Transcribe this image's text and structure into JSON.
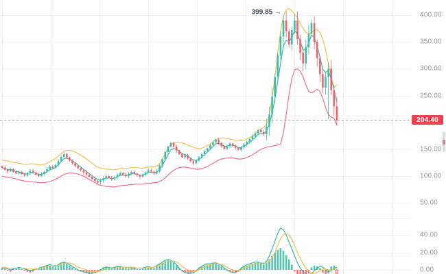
{
  "colors": {
    "up": "#3dbda9",
    "down": "#f0616b",
    "yellow": "#f2c14e",
    "pink": "#ef7089",
    "teal": "#35b9a2",
    "hist_up": "#52c6ae",
    "hist_down": "#f0787f",
    "dashed": "#f2939e",
    "badge_bg": "#ef404f",
    "grid": "#f1f2f4",
    "axis_text": "#95989d",
    "annotation_text": "#3f4555"
  },
  "annotation": {
    "label": "399.85 →",
    "price": 399.85,
    "candle_index": 100
  },
  "last_price": {
    "label": "204.40",
    "price": 204.4
  },
  "axes": {
    "price_ticks": [
      {
        "label": "400.00",
        "price": 400
      },
      {
        "label": "350.00",
        "price": 350
      },
      {
        "label": "300.00",
        "price": 300
      },
      {
        "label": "250.00",
        "price": 250
      },
      {
        "label": "150.00",
        "price": 150
      },
      {
        "label": "100.00",
        "price": 100
      },
      {
        "label": "50.00",
        "price": 50
      }
    ],
    "osc_ticks": [
      {
        "label": "40.00",
        "value": 40
      },
      {
        "label": "20.00",
        "value": 20
      },
      {
        "label": "0.00",
        "value": 0
      }
    ]
  },
  "chart_data": [
    {
      "type": "candlestick",
      "panel": "price",
      "title": "",
      "ylim": [
        35,
        428
      ],
      "yticks": [
        400,
        350,
        300,
        250,
        150,
        100,
        50
      ],
      "grid": true,
      "last_price": 204.4,
      "annotated_high": 399.85,
      "close": [
        116,
        112,
        109,
        113,
        108,
        105,
        108,
        104,
        101,
        105,
        110,
        107,
        103,
        100,
        104,
        108,
        113,
        118,
        115,
        121,
        128,
        136,
        141,
        135,
        129,
        124,
        119,
        115,
        111,
        107,
        103,
        99,
        95,
        91,
        88,
        92,
        96,
        100,
        97,
        94,
        98,
        102,
        106,
        103,
        100,
        104,
        108,
        105,
        102,
        99,
        103,
        107,
        111,
        108,
        105,
        109,
        120,
        132,
        145,
        155,
        162,
        155,
        148,
        141,
        135,
        139,
        133,
        128,
        124,
        129,
        135,
        141,
        147,
        152,
        158,
        163,
        168,
        162,
        156,
        151,
        156,
        161,
        157,
        153,
        149,
        154,
        159,
        164,
        169,
        174,
        180,
        186,
        182,
        178,
        192,
        215,
        248,
        285,
        325,
        360,
        390,
        370,
        345,
        372,
        390,
        355,
        330,
        310,
        340,
        365,
        385,
        350,
        320,
        290,
        265,
        285,
        300,
        260,
        230,
        204.4
      ],
      "high_overrides": {
        "100": 399.85
      },
      "low_overrides": {
        "116": 206,
        "119": 196
      },
      "series": [
        {
          "name": "upper-band",
          "color_key": "yellow",
          "values": [
            130,
            129,
            128,
            127,
            126,
            125,
            124,
            123,
            122,
            122,
            123,
            123,
            122,
            121,
            121,
            122,
            124,
            127,
            130,
            133,
            137,
            142,
            146,
            148,
            148,
            147,
            145,
            142,
            139,
            136,
            132,
            128,
            124,
            120,
            117,
            115,
            114,
            113,
            113,
            112,
            112,
            113,
            114,
            114,
            115,
            115,
            116,
            116,
            116,
            115,
            115,
            116,
            117,
            117,
            117,
            118,
            124,
            132,
            142,
            152,
            159,
            162,
            163,
            163,
            162,
            160,
            158,
            156,
            154,
            152,
            151,
            152,
            154,
            157,
            160,
            164,
            168,
            170,
            171,
            171,
            170,
            169,
            168,
            167,
            166,
            166,
            167,
            169,
            172,
            175,
            179,
            184,
            188,
            191,
            196,
            215,
            245,
            285,
            330,
            370,
            398,
            410,
            412,
            408,
            402,
            395,
            385,
            375,
            368,
            365,
            368,
            372,
            373,
            368,
            355,
            335,
            310,
            285,
            265,
            270
          ]
        },
        {
          "name": "lower-band",
          "color_key": "pink",
          "values": [
            100,
            99,
            98,
            97,
            96,
            95,
            93,
            92,
            91,
            90,
            90,
            89,
            89,
            88,
            88,
            88,
            89,
            90,
            92,
            94,
            97,
            100,
            103,
            105,
            106,
            106,
            105,
            104,
            102,
            100,
            97,
            94,
            91,
            88,
            85,
            83,
            82,
            81,
            81,
            80,
            80,
            81,
            82,
            83,
            83,
            84,
            84,
            85,
            85,
            85,
            85,
            86,
            87,
            87,
            88,
            88,
            90,
            93,
            97,
            102,
            107,
            111,
            114,
            116,
            117,
            117,
            116,
            115,
            114,
            113,
            113,
            114,
            116,
            118,
            121,
            124,
            127,
            130,
            132,
            133,
            134,
            134,
            134,
            133,
            132,
            132,
            133,
            135,
            137,
            140,
            143,
            147,
            150,
            152,
            154,
            155,
            156,
            157,
            158,
            160,
            180,
            215,
            252,
            282,
            298,
            300,
            295,
            285,
            270,
            258,
            255,
            258,
            262,
            258,
            245,
            228,
            215,
            210,
            208,
            195
          ]
        },
        {
          "name": "mid-ma",
          "color_key": "teal",
          "derived": "ema(close,4)"
        }
      ]
    },
    {
      "type": "bar",
      "panel": "oscillator",
      "ylim": [
        -8,
        75
      ],
      "yticks": [
        40,
        20,
        0
      ],
      "grid": true,
      "last_bar_hollow": true,
      "values": [
        2,
        1,
        -1,
        -2,
        1,
        2,
        3,
        1,
        -1,
        -2,
        -3,
        -2,
        1,
        2,
        3,
        4,
        5,
        6,
        4,
        3,
        6,
        8,
        9,
        7,
        5,
        3,
        1,
        -1,
        -2,
        -3,
        -4,
        -5,
        -4,
        -3,
        -2,
        1,
        3,
        4,
        3,
        2,
        3,
        4,
        4,
        3,
        2,
        2,
        3,
        2,
        1,
        1,
        2,
        3,
        4,
        3,
        2,
        4,
        6,
        8,
        10,
        11,
        10,
        8,
        5,
        2,
        -1,
        -3,
        -4,
        -4,
        -3,
        -2,
        2,
        4,
        5,
        6,
        6,
        7,
        7,
        6,
        4,
        2,
        -1,
        -2,
        -3,
        -3,
        -2,
        2,
        4,
        5,
        6,
        7,
        8,
        9,
        8,
        6,
        8,
        12,
        16,
        20,
        23,
        25,
        22,
        17,
        12,
        6,
        -2,
        -5,
        -7,
        -8,
        -6,
        -4,
        3,
        5,
        4,
        2,
        -3,
        -5,
        -4,
        4,
        5,
        -4
      ],
      "series": [
        {
          "name": "fast-line",
          "color_key": "teal",
          "values": [
            2,
            2,
            1,
            0,
            1,
            2,
            3,
            2,
            1,
            0,
            -1,
            0,
            1,
            2,
            3,
            4,
            5,
            6,
            5,
            4,
            6,
            8,
            9,
            8,
            6,
            4,
            2,
            0,
            -1,
            -2,
            -3,
            -4,
            -4,
            -3,
            -2,
            0,
            2,
            3,
            3,
            2,
            3,
            4,
            4,
            3,
            3,
            3,
            3,
            2,
            2,
            2,
            2,
            3,
            4,
            3,
            3,
            5,
            7,
            9,
            11,
            12,
            11,
            9,
            6,
            2,
            -1,
            -3,
            -4,
            -4,
            -3,
            -1,
            2,
            4,
            6,
            7,
            7,
            8,
            8,
            7,
            5,
            2,
            0,
            -2,
            -3,
            -3,
            -1,
            2,
            4,
            6,
            7,
            8,
            9,
            9,
            8,
            7,
            10,
            16,
            24,
            33,
            42,
            48,
            46,
            40,
            32,
            24,
            16,
            8,
            2,
            -2,
            -5,
            -6,
            -4,
            -1,
            2,
            4,
            3,
            0,
            -2,
            -1,
            2,
            3
          ]
        },
        {
          "name": "slow-line",
          "color_key": "yellow",
          "values": [
            3,
            3,
            2,
            2,
            2,
            2,
            2,
            2,
            2,
            1,
            1,
            1,
            1,
            2,
            2,
            3,
            4,
            5,
            5,
            5,
            5,
            6,
            7,
            8,
            8,
            7,
            5,
            3,
            2,
            1,
            0,
            -1,
            -2,
            -2,
            -2,
            -1,
            0,
            1,
            2,
            2,
            2,
            3,
            3,
            3,
            3,
            3,
            3,
            3,
            2,
            2,
            2,
            2,
            3,
            3,
            3,
            4,
            5,
            7,
            8,
            10,
            10,
            10,
            9,
            7,
            4,
            2,
            0,
            -1,
            -2,
            -1,
            0,
            2,
            3,
            5,
            6,
            7,
            7,
            7,
            6,
            5,
            3,
            1,
            0,
            -1,
            -1,
            0,
            2,
            3,
            5,
            6,
            7,
            8,
            8,
            8,
            8,
            10,
            14,
            20,
            28,
            36,
            40,
            42,
            40,
            35,
            28,
            20,
            13,
            7,
            2,
            -2,
            -4,
            -4,
            -3,
            -1,
            1,
            1,
            0,
            0,
            1,
            2
          ]
        }
      ]
    }
  ]
}
